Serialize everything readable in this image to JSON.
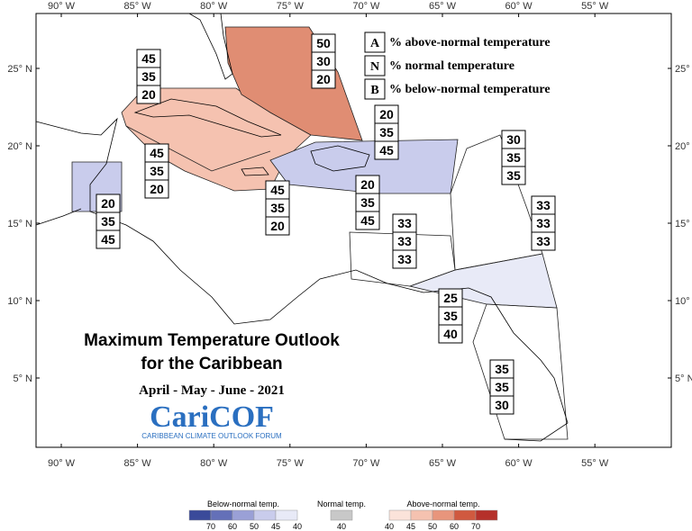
{
  "title": {
    "line1": "Maximum Temperature Outlook",
    "line2": "for the Caribbean",
    "period": "April - May - June - 2021"
  },
  "logo": {
    "name": "CariCOF",
    "full_name": "CARIBBEAN CLIMATE OUTLOOK FORUM"
  },
  "key": [
    {
      "letter": "A",
      "text": "% above-normal temperature"
    },
    {
      "letter": "N",
      "text": "% normal temperature"
    },
    {
      "letter": "B",
      "text": "% below-normal temperature"
    }
  ],
  "lon_ticks": [
    {
      "value": -90,
      "label": "90° W"
    },
    {
      "value": -85,
      "label": "85° W"
    },
    {
      "value": -80,
      "label": "80° W"
    },
    {
      "value": -75,
      "label": "75° W"
    },
    {
      "value": -70,
      "label": "70° W"
    },
    {
      "value": -65,
      "label": "65° W"
    },
    {
      "value": -60,
      "label": "60° W"
    },
    {
      "value": -55,
      "label": "55° W"
    }
  ],
  "lat_ticks": [
    {
      "value": 25,
      "label": "25° N"
    },
    {
      "value": 20,
      "label": "20° N"
    },
    {
      "value": 15,
      "label": "15° N"
    },
    {
      "value": 10,
      "label": "10° N"
    },
    {
      "value": 5,
      "label": "5° N"
    }
  ],
  "regions": [
    {
      "above": 45,
      "normal": 35,
      "below": 20
    },
    {
      "above": 50,
      "normal": 30,
      "below": 20
    },
    {
      "above": 20,
      "normal": 35,
      "below": 45
    },
    {
      "above": 45,
      "normal": 35,
      "below": 20
    },
    {
      "above": 45,
      "normal": 35,
      "below": 20
    },
    {
      "above": 20,
      "normal": 35,
      "below": 45
    },
    {
      "above": 20,
      "normal": 35,
      "below": 45
    },
    {
      "above": 30,
      "normal": 35,
      "below": 35
    },
    {
      "above": 33,
      "normal": 33,
      "below": 33
    },
    {
      "above": 33,
      "normal": 33,
      "below": 33
    },
    {
      "above": 25,
      "normal": 35,
      "below": 40
    },
    {
      "above": 35,
      "normal": 35,
      "below": 30
    }
  ],
  "legend": {
    "below": {
      "title": "Below-normal temp.",
      "ticks": [
        70,
        60,
        50,
        45,
        40
      ],
      "colors": [
        "#3a4a9a",
        "#6470b8",
        "#9aa0d6",
        "#c9ccec",
        "#e8eaf7"
      ]
    },
    "normal": {
      "title": "Normal temp.",
      "ticks": [
        40
      ],
      "colors": [
        "#c8c8c8"
      ]
    },
    "above": {
      "title": "Above-normal temp.",
      "ticks": [
        40,
        45,
        50,
        60,
        70
      ],
      "colors": [
        "#fbe3da",
        "#f5c2b0",
        "#e8957c",
        "#d0593f",
        "#b5302a"
      ]
    }
  }
}
